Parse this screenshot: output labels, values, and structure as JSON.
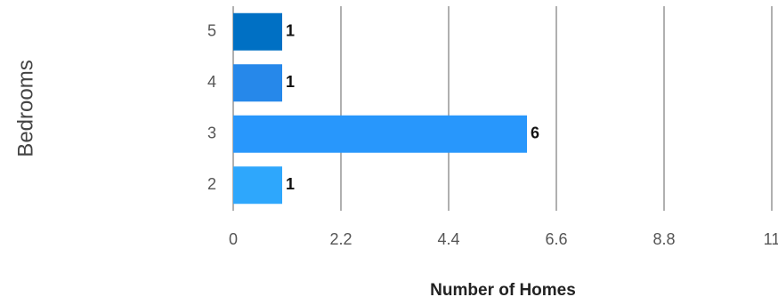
{
  "chart_data": {
    "type": "bar",
    "orientation": "horizontal",
    "title": "",
    "xlabel": "Number of Homes",
    "ylabel": "Bedrooms",
    "categories": [
      "5",
      "4",
      "3",
      "2"
    ],
    "values": [
      1,
      1,
      6,
      1
    ],
    "data_labels": [
      "1",
      "1",
      "6",
      "1"
    ],
    "xlim": [
      0,
      11
    ],
    "x_ticks": [
      0,
      2.2,
      4.4,
      6.6,
      8.8,
      11
    ],
    "x_tick_labels": [
      "0",
      "2.2",
      "4.4",
      "6.6",
      "8.8",
      "11"
    ],
    "grid": true,
    "legend": "none",
    "bar_colors": [
      "#0070c4",
      "#2688ea",
      "#2897fc",
      "#2ea7fc"
    ],
    "gridline_color": "#b0b0b0"
  }
}
